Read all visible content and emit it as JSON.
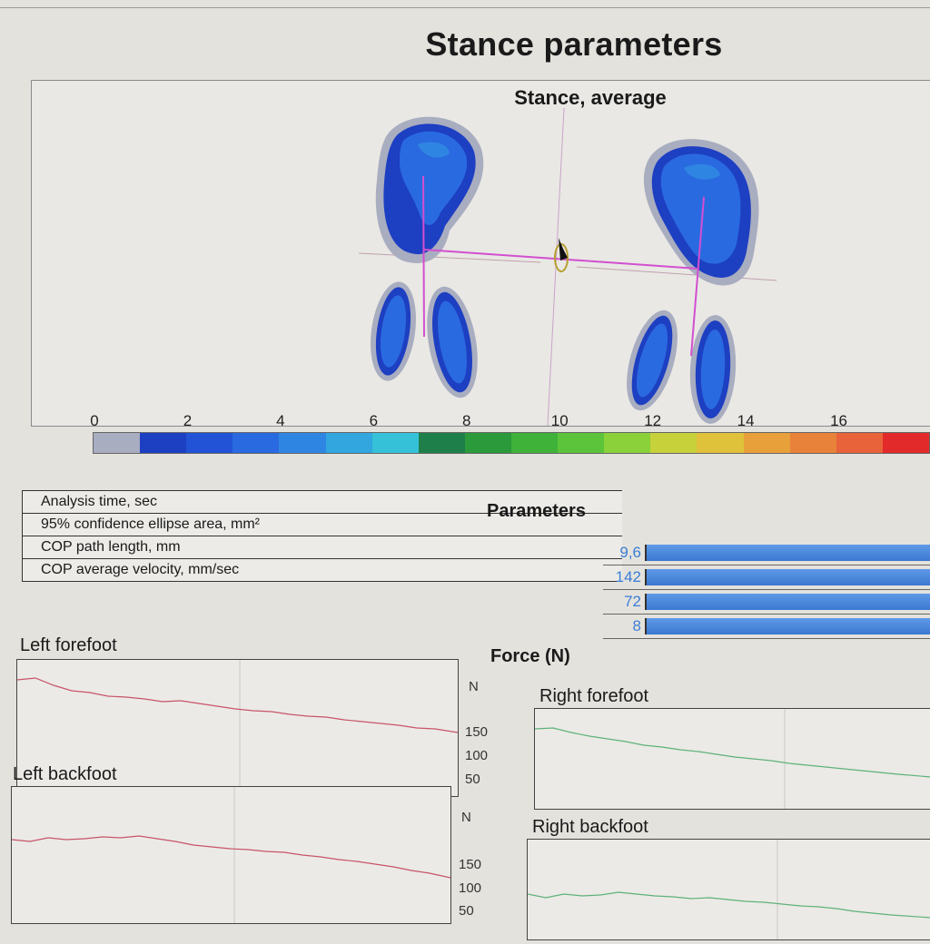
{
  "title": "Stance parameters",
  "stance": {
    "title": "Stance, average"
  },
  "scale": {
    "labels": [
      "0",
      "2",
      "4",
      "6",
      "8",
      "10",
      "12",
      "14",
      "16"
    ],
    "colors": [
      "#a9adc0",
      "#1d3fc2",
      "#2253d6",
      "#2a6ae0",
      "#2f86e2",
      "#31a6df",
      "#35c2d8",
      "#1f7f4a",
      "#2a9a3a",
      "#3fb23a",
      "#5cc43a",
      "#8ad13a",
      "#c7d13a",
      "#e0c13a",
      "#e8a03a",
      "#e8823a",
      "#e8623a",
      "#e32a2a"
    ]
  },
  "parameters": {
    "title": "Parameters",
    "rows": [
      {
        "label": "Analysis time, sec",
        "value": "9,6"
      },
      {
        "label": "95% confidence ellipse area, mm²",
        "value": "142"
      },
      {
        "label": "COP path length, mm",
        "value": "72"
      },
      {
        "label": "COP average velocity, mm/sec",
        "value": "8"
      }
    ]
  },
  "force": {
    "title": "Force (N)",
    "unit": "N",
    "ticks": [
      "150",
      "100",
      "50"
    ],
    "left_forefoot": "Left forefoot",
    "left_backfoot": "Left backfoot",
    "right_forefoot": "Right forefoot",
    "right_backfoot": "Right backfoot",
    "line_colors": {
      "left": "#c8546a",
      "right": "#5fb27a"
    }
  }
}
